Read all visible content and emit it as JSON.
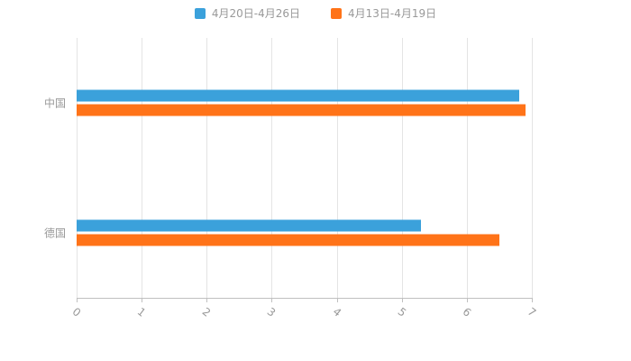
{
  "chart_data": {
    "type": "bar",
    "orientation": "horizontal",
    "title": "",
    "categories": [
      "中国",
      "德国"
    ],
    "series": [
      {
        "name": "4月20日-4月26日",
        "color": "#3BA1DB",
        "values": [
          6.8,
          5.3
        ]
      },
      {
        "name": "4月13日-4月19日",
        "color": "#FF7318",
        "values": [
          6.9,
          6.5
        ]
      }
    ],
    "xlim": [
      0,
      7
    ],
    "xticks": [
      0,
      1,
      2,
      3,
      4,
      5,
      6,
      7
    ],
    "xtick_labels": [
      "0",
      "1",
      "2",
      "3",
      "4",
      "5",
      "6",
      "7"
    ],
    "grid": true,
    "legend_position": "top",
    "axis_color": "#c0c0c0",
    "gridline_color": "#e4e4e4",
    "label_color": "#999999",
    "background_color": "#ffffff"
  }
}
